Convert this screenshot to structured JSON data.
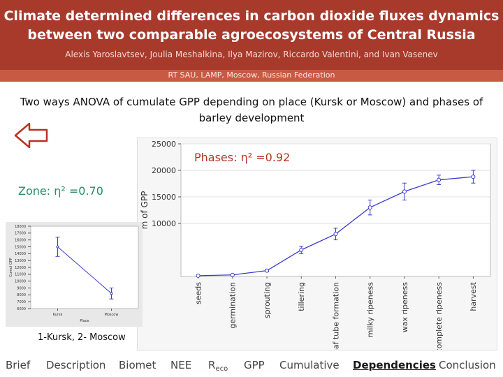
{
  "header": {
    "title_line1": "Climate determined differences in carbon dioxide fluxes dynamics",
    "title_line2": "between two comparable agroecosystems of Central Russia",
    "authors": "Alexis Yaroslavtsev, Joulia Meshalkina, Ilya Mazirov, Riccardo Valentini, and Ivan Vasenev",
    "affiliation": "RT SAU, LAMP, Moscow, Russian Federation"
  },
  "subtitle": "Two ways ANOVA of cumulate GPP depending on place (Kursk or Moscow) and phases of barley development",
  "annotations": {
    "phases": "Phases: η² =0.92",
    "zone": "Zone: η² =0.70",
    "small_legend": "1-Kursk,  2- Moscow"
  },
  "colors": {
    "header": "#a83a2c",
    "affiliation_bar": "#c85a44",
    "phases_label": "#b83226",
    "zone_label": "#2a8a68",
    "series": "#3a3ad0"
  },
  "icons": {
    "back": "left-arrow-outline-icon"
  },
  "chart_data": [
    {
      "type": "line",
      "ylabel": "m of GPP",
      "ylim": [
        0,
        25000
      ],
      "yticks": [
        10000,
        15000,
        20000,
        25000
      ],
      "categories": [
        "seeds",
        "germination",
        "sprouting",
        "tillering",
        "leaf tube formation",
        "milky ripeness",
        "wax ripeness",
        "complete ripeness",
        "harvest"
      ],
      "values": [
        150,
        300,
        1100,
        5000,
        8000,
        13000,
        16000,
        18200,
        18800
      ],
      "errors": [
        0,
        0,
        200,
        700,
        1100,
        1400,
        1600,
        900,
        1200
      ],
      "grid": true
    },
    {
      "type": "line",
      "categories": [
        "Kursk",
        "Moscow"
      ],
      "values": [
        15000,
        8200
      ],
      "errors": [
        1400,
        800
      ],
      "ylim": [
        6000,
        18000
      ],
      "yticks": [
        6000,
        7000,
        8000,
        9000,
        10000,
        11000,
        12000,
        13000,
        14000,
        15000,
        16000,
        17000,
        18000
      ],
      "ylabel": "Cumul GPP",
      "xlabel": "Place"
    }
  ],
  "nav": {
    "items": [
      {
        "label": "Brief"
      },
      {
        "label": "Description"
      },
      {
        "label": "Biomet"
      },
      {
        "label": "NEE"
      },
      {
        "label": "R",
        "sub": "eco"
      },
      {
        "label": "GPP"
      },
      {
        "label": "Cumulative"
      },
      {
        "label": "Dependencies",
        "active": true
      },
      {
        "label": "Conclusion"
      }
    ]
  }
}
